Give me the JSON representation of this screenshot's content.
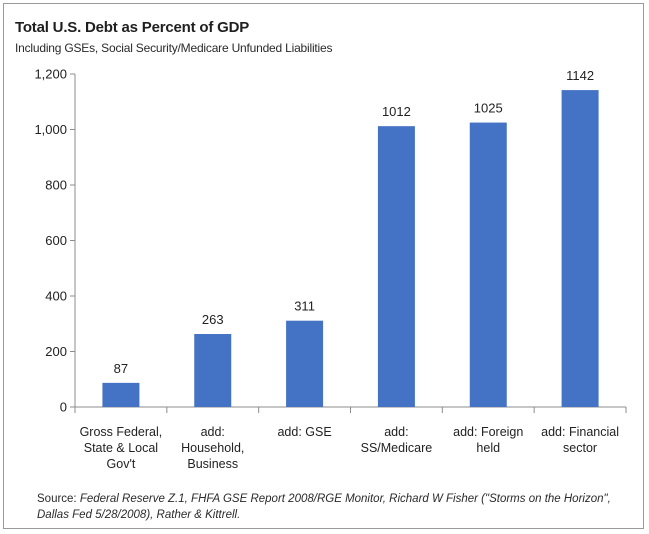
{
  "chart_data": {
    "type": "bar",
    "title": "Total U.S. Debt as Percent of GDP",
    "subtitle": "Including GSEs, Social Security/Medicare Unfunded Liabilities",
    "categories": [
      [
        "Gross Federal,",
        "State & Local",
        "Gov't"
      ],
      [
        "add:",
        "Household,",
        "Business"
      ],
      [
        "add: GSE"
      ],
      [
        "add:",
        "SS/Medicare"
      ],
      [
        "add: Foreign",
        "held"
      ],
      [
        "add: Financial",
        "sector"
      ]
    ],
    "values": [
      87,
      263,
      311,
      1012,
      1025,
      1142
    ],
    "data_labels": [
      "87",
      "263",
      "311",
      "1012",
      "1025",
      "1142"
    ],
    "ylim": [
      0,
      1200
    ],
    "yticks": [
      0,
      200,
      400,
      600,
      800,
      1000,
      1200
    ],
    "ytick_labels": [
      "0",
      "200",
      "400",
      "600",
      "800",
      "1,000",
      "1,200"
    ],
    "xlabel": "",
    "ylabel": "",
    "grid": false,
    "legend": "none",
    "bar_color": "#4472c4",
    "source_lead": "Source: ",
    "source": "Federal Reserve Z.1, FHFA GSE Report 2008/RGE Monitor, Richard W Fisher (\"Storms on the Horizon\", Dallas Fed 5/28/2008), Rather & Kittrell."
  }
}
